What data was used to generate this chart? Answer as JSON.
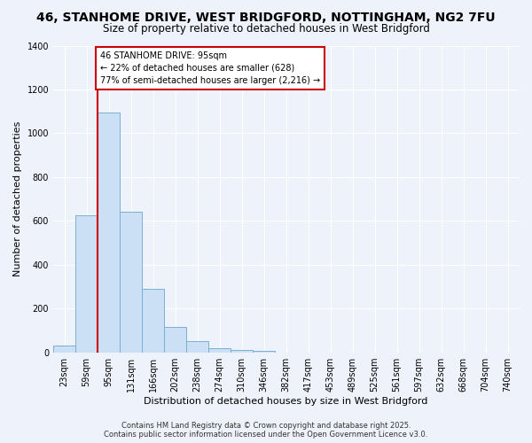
{
  "title": "46, STANHOME DRIVE, WEST BRIDGFORD, NOTTINGHAM, NG2 7FU",
  "subtitle": "Size of property relative to detached houses in West Bridgford",
  "xlabel": "Distribution of detached houses by size in West Bridgford",
  "ylabel": "Number of detached properties",
  "categories": [
    "23sqm",
    "59sqm",
    "95sqm",
    "131sqm",
    "166sqm",
    "202sqm",
    "238sqm",
    "274sqm",
    "310sqm",
    "346sqm",
    "382sqm",
    "417sqm",
    "453sqm",
    "489sqm",
    "525sqm",
    "561sqm",
    "597sqm",
    "632sqm",
    "668sqm",
    "704sqm",
    "740sqm"
  ],
  "bar_values": [
    30,
    625,
    1095,
    640,
    290,
    115,
    50,
    20,
    12,
    5,
    0,
    0,
    0,
    0,
    0,
    0,
    0,
    0,
    0,
    0,
    0
  ],
  "bar_color": "#cce0f5",
  "bar_edge_color": "#7ab0d4",
  "highlight_line_color": "#cc0000",
  "highlight_bar_index": 2,
  "annotation_title": "46 STANHOME DRIVE: 95sqm",
  "annotation_line1": "← 22% of detached houses are smaller (628)",
  "annotation_line2": "77% of semi-detached houses are larger (2,216) →",
  "annotation_box_color": "#ffffff",
  "annotation_box_edge_color": "#cc0000",
  "ylim": [
    0,
    1400
  ],
  "yticks": [
    0,
    200,
    400,
    600,
    800,
    1000,
    1200,
    1400
  ],
  "footer_line1": "Contains HM Land Registry data © Crown copyright and database right 2025.",
  "footer_line2": "Contains public sector information licensed under the Open Government Licence v3.0.",
  "background_color": "#eef2fb",
  "title_fontsize": 10,
  "subtitle_fontsize": 8.5,
  "axis_label_fontsize": 8,
  "tick_fontsize": 7,
  "footer_fontsize": 6
}
